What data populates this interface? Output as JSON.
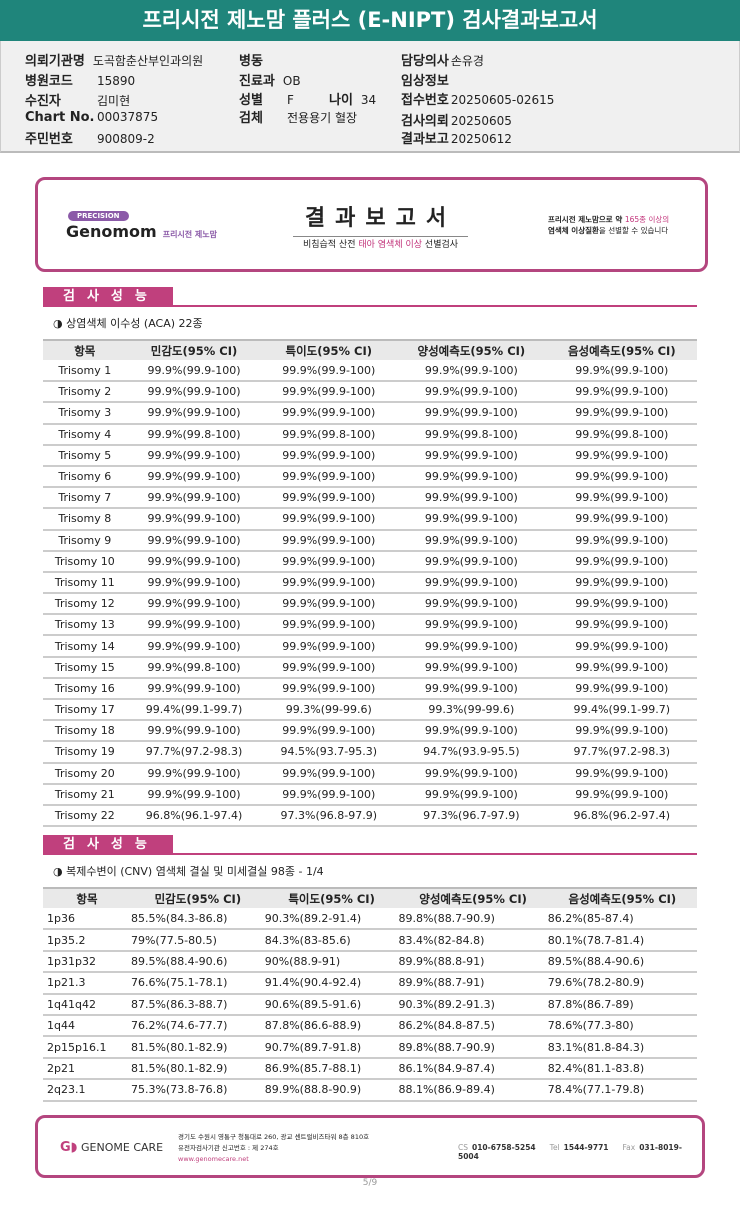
{
  "title": "프리시전 제노맘 플러스 (E-NIPT) 검사결과보고서",
  "info": {
    "institution": {
      "label": "의뢰기관명",
      "value": "도곡함춘산부인과의원"
    },
    "hospital_code": {
      "label": "병원코드",
      "value": "15890"
    },
    "patient": {
      "label": "수진자",
      "value": "김미현"
    },
    "chart_no": {
      "label": "Chart No.",
      "value": "00037875"
    },
    "resident_no": {
      "label": "주민번호",
      "value": "900809-2"
    },
    "ward": {
      "label": "병동",
      "value": ""
    },
    "department": {
      "label": "진료과",
      "value": "OB"
    },
    "sex": {
      "label": "성별",
      "value": "F"
    },
    "age": {
      "label": "나이",
      "value": "34"
    },
    "specimen": {
      "label": "검체",
      "value": "전용용기 혈장"
    },
    "doctor": {
      "label": "담당의사",
      "value": "손유경"
    },
    "clinical": {
      "label": "임상정보",
      "value": ""
    },
    "receipt_no": {
      "label": "접수번호",
      "value": "20250605-02615"
    },
    "request_date": {
      "label": "검사의뢰",
      "value": "20250605"
    },
    "report_date": {
      "label": "결과보고",
      "value": "20250612"
    }
  },
  "banner": {
    "precision": "PRECISION",
    "brand": "Genomom",
    "brand_kr": "프리시전 제노맘",
    "title": "결과보고서",
    "sub_pre": "비침습적 산전 ",
    "sub_em": "태아 염색체 이상",
    "sub_post": " 선별검사",
    "right1_pre": "프리시전 제노맘으로 약 ",
    "right1_em": "165종 이상의",
    "right2_pre": "염색체 이상질환",
    "right2_post": "을 선별할 수 있습니다"
  },
  "section_title": "검사성능",
  "aca": {
    "subtitle": "◑ 상염색체 이수성 (ACA) 22종",
    "headers": [
      "항목",
      "민감도(95% CI)",
      "특이도(95% CI)",
      "양성예측도(95% CI)",
      "음성예측도(95% CI)"
    ],
    "rows": [
      [
        "Trisomy 1",
        "99.9%(99.9-100)",
        "99.9%(99.9-100)",
        "99.9%(99.9-100)",
        "99.9%(99.9-100)"
      ],
      [
        "Trisomy 2",
        "99.9%(99.9-100)",
        "99.9%(99.9-100)",
        "99.9%(99.9-100)",
        "99.9%(99.9-100)"
      ],
      [
        "Trisomy 3",
        "99.9%(99.9-100)",
        "99.9%(99.9-100)",
        "99.9%(99.9-100)",
        "99.9%(99.9-100)"
      ],
      [
        "Trisomy 4",
        "99.9%(99.8-100)",
        "99.9%(99.8-100)",
        "99.9%(99.8-100)",
        "99.9%(99.8-100)"
      ],
      [
        "Trisomy 5",
        "99.9%(99.9-100)",
        "99.9%(99.9-100)",
        "99.9%(99.9-100)",
        "99.9%(99.9-100)"
      ],
      [
        "Trisomy 6",
        "99.9%(99.9-100)",
        "99.9%(99.9-100)",
        "99.9%(99.9-100)",
        "99.9%(99.9-100)"
      ],
      [
        "Trisomy 7",
        "99.9%(99.9-100)",
        "99.9%(99.9-100)",
        "99.9%(99.9-100)",
        "99.9%(99.9-100)"
      ],
      [
        "Trisomy 8",
        "99.9%(99.9-100)",
        "99.9%(99.9-100)",
        "99.9%(99.9-100)",
        "99.9%(99.9-100)"
      ],
      [
        "Trisomy 9",
        "99.9%(99.9-100)",
        "99.9%(99.9-100)",
        "99.9%(99.9-100)",
        "99.9%(99.9-100)"
      ],
      [
        "Trisomy 10",
        "99.9%(99.9-100)",
        "99.9%(99.9-100)",
        "99.9%(99.9-100)",
        "99.9%(99.9-100)"
      ],
      [
        "Trisomy 11",
        "99.9%(99.9-100)",
        "99.9%(99.9-100)",
        "99.9%(99.9-100)",
        "99.9%(99.9-100)"
      ],
      [
        "Trisomy 12",
        "99.9%(99.9-100)",
        "99.9%(99.9-100)",
        "99.9%(99.9-100)",
        "99.9%(99.9-100)"
      ],
      [
        "Trisomy 13",
        "99.9%(99.9-100)",
        "99.9%(99.9-100)",
        "99.9%(99.9-100)",
        "99.9%(99.9-100)"
      ],
      [
        "Trisomy 14",
        "99.9%(99.9-100)",
        "99.9%(99.9-100)",
        "99.9%(99.9-100)",
        "99.9%(99.9-100)"
      ],
      [
        "Trisomy 15",
        "99.9%(99.8-100)",
        "99.9%(99.9-100)",
        "99.9%(99.9-100)",
        "99.9%(99.9-100)"
      ],
      [
        "Trisomy 16",
        "99.9%(99.9-100)",
        "99.9%(99.9-100)",
        "99.9%(99.9-100)",
        "99.9%(99.9-100)"
      ],
      [
        "Trisomy 17",
        "99.4%(99.1-99.7)",
        "99.3%(99-99.6)",
        "99.3%(99-99.6)",
        "99.4%(99.1-99.7)"
      ],
      [
        "Trisomy 18",
        "99.9%(99.9-100)",
        "99.9%(99.9-100)",
        "99.9%(99.9-100)",
        "99.9%(99.9-100)"
      ],
      [
        "Trisomy 19",
        "97.7%(97.2-98.3)",
        "94.5%(93.7-95.3)",
        "94.7%(93.9-95.5)",
        "97.7%(97.2-98.3)"
      ],
      [
        "Trisomy 20",
        "99.9%(99.9-100)",
        "99.9%(99.9-100)",
        "99.9%(99.9-100)",
        "99.9%(99.9-100)"
      ],
      [
        "Trisomy 21",
        "99.9%(99.9-100)",
        "99.9%(99.9-100)",
        "99.9%(99.9-100)",
        "99.9%(99.9-100)"
      ],
      [
        "Trisomy 22",
        "96.8%(96.1-97.4)",
        "97.3%(96.8-97.9)",
        "97.3%(96.7-97.9)",
        "96.8%(96.2-97.4)"
      ]
    ]
  },
  "cnv": {
    "subtitle": "◑ 복제수변이 (CNV) 염색체 결실 및 미세결실 98종 - 1/4",
    "headers": [
      "항목",
      "민감도(95% CI)",
      "특이도(95% CI)",
      "양성예측도(95% CI)",
      "음성예측도(95% CI)"
    ],
    "rows": [
      [
        "1p36",
        "85.5%(84.3-86.8)",
        "90.3%(89.2-91.4)",
        "89.8%(88.7-90.9)",
        "86.2%(85-87.4)"
      ],
      [
        "1p35.2",
        "79%(77.5-80.5)",
        "84.3%(83-85.6)",
        "83.4%(82-84.8)",
        "80.1%(78.7-81.4)"
      ],
      [
        "1p31p32",
        "89.5%(88.4-90.6)",
        "90%(88.9-91)",
        "89.9%(88.8-91)",
        "89.5%(88.4-90.6)"
      ],
      [
        "1p21.3",
        "76.6%(75.1-78.1)",
        "91.4%(90.4-92.4)",
        "89.9%(88.7-91)",
        "79.6%(78.2-80.9)"
      ],
      [
        "1q41q42",
        "87.5%(86.3-88.7)",
        "90.6%(89.5-91.6)",
        "90.3%(89.2-91.3)",
        "87.8%(86.7-89)"
      ],
      [
        "1q44",
        "76.2%(74.6-77.7)",
        "87.8%(86.6-88.9)",
        "86.2%(84.8-87.5)",
        "78.6%(77.3-80)"
      ],
      [
        "2p15p16.1",
        "81.5%(80.1-82.9)",
        "90.7%(89.7-91.8)",
        "89.8%(88.7-90.9)",
        "83.1%(81.8-84.3)"
      ],
      [
        "2p21",
        "81.5%(80.1-82.9)",
        "86.9%(85.7-88.1)",
        "86.1%(84.9-87.4)",
        "82.4%(81.1-83.8)"
      ],
      [
        "2q23.1",
        "75.3%(73.8-76.8)",
        "89.9%(88.8-90.9)",
        "88.1%(86.9-89.4)",
        "78.4%(77.1-79.8)"
      ]
    ]
  },
  "footer": {
    "company": "GENOME CARE",
    "address": "경기도 수원시 영통구 청통대로 260, 광교 센트럴비즈타워 8층 810호",
    "license": "유전자검사기관 신고번호 : 제 274호",
    "url": "www.genomecare.net",
    "cs_label": "CS",
    "cs": "010-6758-5254",
    "tel_label": "Tel",
    "tel": "1544-9771",
    "fax_label": "Fax",
    "fax": "031-8019-5004"
  },
  "page": "5/9",
  "colors": {
    "title_bar": "#1f857b",
    "accent": "#c0407d"
  }
}
